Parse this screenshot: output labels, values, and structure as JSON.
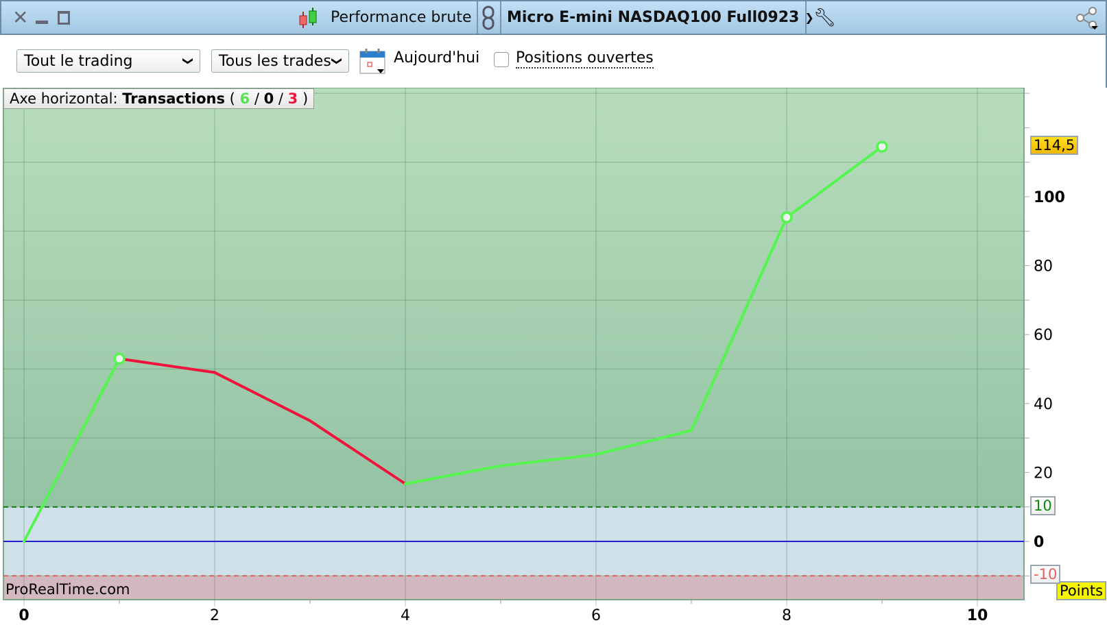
{
  "window": {
    "title": "Performance brute",
    "instrument": "Micro E-mini NASDAQ100 Full0923",
    "icons": [
      "close-icon",
      "minimize-icon",
      "maximize-icon",
      "candlestick-icon",
      "link-icon",
      "wrench-icon",
      "share-icon"
    ]
  },
  "toolbar": {
    "period_select": "Tout le trading",
    "trades_select": "Tous les trades",
    "date_label": "Aujourd'hui",
    "open_positions_label": "Positions ouvertes",
    "open_positions_checked": false
  },
  "legend": {
    "prefix": "Axe horizontal: ",
    "axis_name": "Transactions",
    "open_paren": " ( ",
    "wins": "6",
    "sep1": " / ",
    "neutral": "0",
    "sep2": " / ",
    "losses": "3",
    "close_paren": " )"
  },
  "watermark": "ProRealTime.com",
  "units_label": "Points",
  "colors": {
    "win": "#55f54f",
    "loss": "#f0143c",
    "zero_line": "#2020d0",
    "win_zone": "#a5d1b1",
    "neutral_zone": "#d0e0e8",
    "loss_zone": "#d4b8c0",
    "last_value_bg": "#f5c400"
  },
  "chart_data": {
    "type": "line",
    "title": "Performance brute",
    "xlabel": "Transactions",
    "ylabel": "Points",
    "x": [
      0,
      1,
      2,
      3,
      4,
      5,
      6,
      7,
      8,
      9
    ],
    "y": [
      0,
      53,
      49,
      35,
      16.7,
      21.9,
      25.2,
      32.2,
      94,
      114.5
    ],
    "segment_result": [
      "win",
      "loss",
      "loss",
      "loss",
      "win",
      "win",
      "win",
      "win",
      "win"
    ],
    "markers_at": [
      1,
      8,
      9
    ],
    "xlim": [
      0,
      10.5
    ],
    "ylim": [
      -17,
      131.5
    ],
    "x_ticks": [
      0,
      2,
      4,
      6,
      8,
      10
    ],
    "x_tick_labels": [
      "0",
      "2",
      "4",
      "6",
      "8",
      "10"
    ],
    "y_ticks": [
      20,
      40,
      60,
      80,
      100
    ],
    "y_tick_labels": [
      "20",
      "40",
      "60",
      "80",
      "100"
    ],
    "zero_label": "0",
    "threshold_upper": {
      "value": 10,
      "label": "10"
    },
    "threshold_lower": {
      "value": -10,
      "label": "-10"
    },
    "last_value_label": "114,5",
    "grid": true
  }
}
